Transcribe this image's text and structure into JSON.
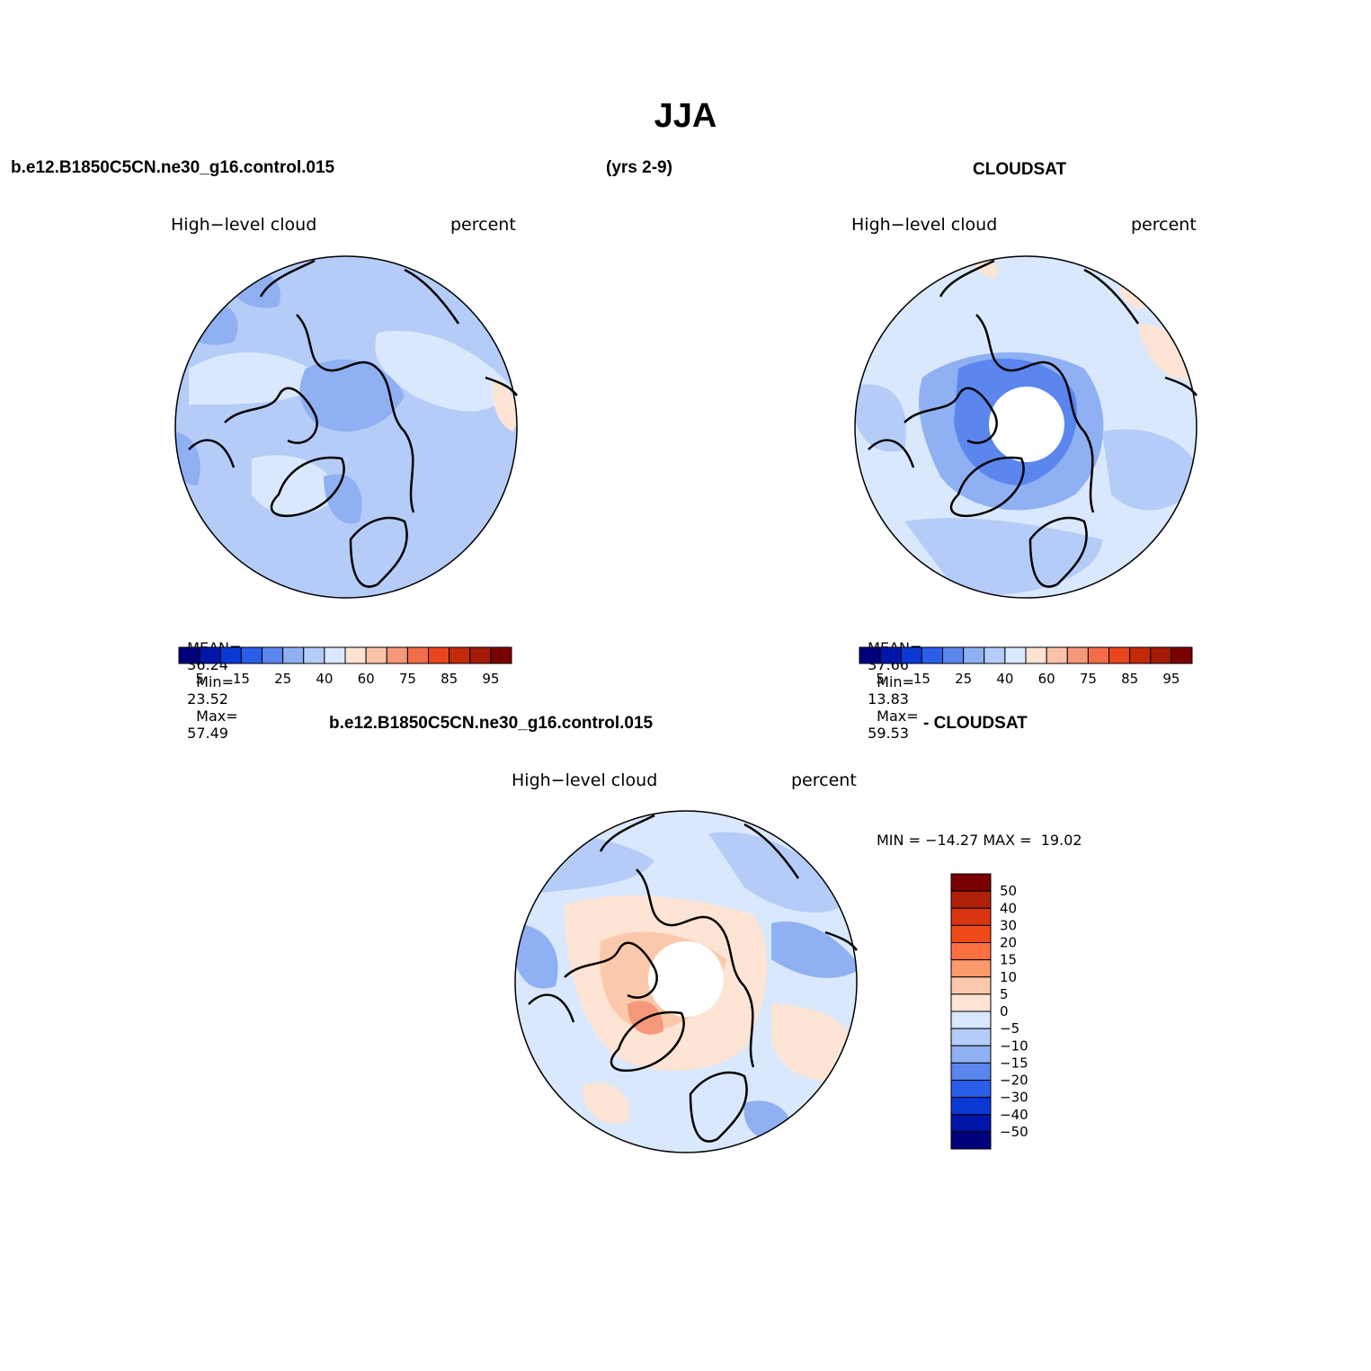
{
  "main_title": "JJA",
  "header": {
    "case": "b.e12.B1850C5CN.ne30_g16.control.015",
    "years": "(yrs 2-9)",
    "obs": "CLOUDSAT"
  },
  "panels": {
    "model": {
      "variable": "High−level cloud",
      "units": "percent",
      "mean_label": "MEAN=",
      "mean": "36.24",
      "min_label": "Min=",
      "min": "23.52",
      "max_label": "Max=",
      "max": "57.49"
    },
    "obs": {
      "variable": "High−level cloud",
      "units": "percent",
      "mean_label": "MEAN=",
      "mean": "37.66",
      "min_label": "Min=",
      "min": "13.83",
      "max_label": "Max=",
      "max": "59.53"
    },
    "diff": {
      "title_left": "b.e12.B1850C5CN.ne30_g16.control.015",
      "title_right": "- CLOUDSAT",
      "variable": "High−level cloud",
      "units": "percent",
      "minmax_text": "MIN = −14.27 MAX =  19.02"
    }
  },
  "colorbar_abs": {
    "colors": [
      "#00007d",
      "#0016a8",
      "#0a38d4",
      "#2a5ee8",
      "#5a86ee",
      "#8fb0f2",
      "#b5ccf8",
      "#d9e8fc",
      "#fde3d2",
      "#fbc3a8",
      "#f5987a",
      "#f26c4a",
      "#e8451c",
      "#c42a0a",
      "#a31a05",
      "#7a0000"
    ],
    "tick_labels": [
      "5",
      "15",
      "25",
      "40",
      "60",
      "75",
      "85",
      "95"
    ]
  },
  "colorbar_diff": {
    "colors": [
      "#7a0000",
      "#b02008",
      "#d83510",
      "#f04a18",
      "#ff7040",
      "#fd9a6c",
      "#fcc8ac",
      "#fde4d4",
      "#d9e8fc",
      "#b5ccf8",
      "#8fb0f2",
      "#5a86ee",
      "#2a5ee8",
      "#0a38d4",
      "#0016a8",
      "#00007d"
    ],
    "tick_labels": [
      "50",
      "40",
      "30",
      "20",
      "15",
      "10",
      "5",
      "0",
      "−5",
      "−10",
      "−15",
      "−20",
      "−30",
      "−40",
      "−50"
    ]
  },
  "colors": {
    "map_base": "#b5ccf8",
    "map_light": "#d9e8fc",
    "map_mid": "#8fb0f2",
    "map_dark": "#5a86ee",
    "map_warm": "#fde4d4",
    "map_warm2": "#fcc8ac",
    "map_warm3": "#f5987a"
  }
}
